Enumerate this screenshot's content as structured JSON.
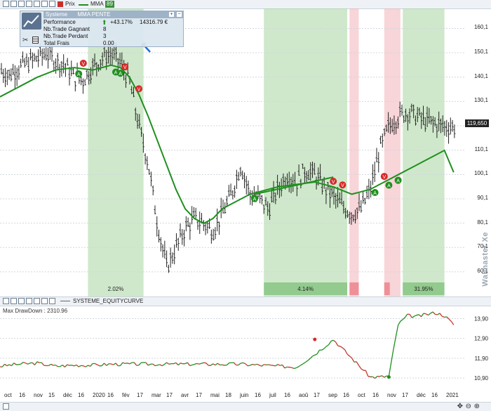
{
  "toolbar": {
    "prix_label": "Prix",
    "mma_label": "MMA",
    "mma_period": "89"
  },
  "legend": {
    "header": "Systeme",
    "strategy": "MMA PENTE",
    "rows": [
      {
        "label": "Performance",
        "value": "+43.17%",
        "value2": "14316.79 €"
      },
      {
        "label": "Nb.Trade Gagnant",
        "value": "8"
      },
      {
        "label": "Nb.Trade Perdant",
        "value": "3"
      },
      {
        "label": "Total Frais",
        "value": "0.00"
      }
    ]
  },
  "brand": "Walmaster Xe",
  "last_price": "119,650",
  "equity_panel": {
    "title": "SYSTEME_EQUITYCURVE",
    "drawdown_label": "Max DrawDown :",
    "drawdown_value": "2310.96"
  },
  "trade_results": [
    "2.02%",
    "4.14%",
    "31.95%"
  ],
  "colors": {
    "ohlc": "#222222",
    "mma": "#1f8f1f",
    "trend_line": "#1f8f1f",
    "long_zone": "#a7d6a0",
    "short_zone": "#f2b3b8",
    "buy_marker": "#1f8f1f",
    "sell_marker": "#d62a2a",
    "equity_up": "#1f8f1f",
    "equity_down": "#c0392b"
  },
  "chart_data": [
    {
      "type": "line",
      "title": "",
      "ylabel": "",
      "ylim": [
        52,
        166
      ],
      "yticks": [
        "160,1",
        "150,1",
        "140,1",
        "130,1",
        "120,1",
        "110,1",
        "100,1",
        "90,1",
        "80,1",
        "70,1",
        "60,1"
      ],
      "ytick_values": [
        160.1,
        150.1,
        140.1,
        130.1,
        120.1,
        110.1,
        100.1,
        90.1,
        80.1,
        70.1,
        60.1
      ],
      "xticks": [
        "oct",
        "16",
        "nov",
        "15",
        "déc",
        "16",
        "2020",
        "16",
        "fév",
        "17",
        "mar",
        "17",
        "avr",
        "17",
        "mai",
        "18",
        "juin",
        "16",
        "juil",
        "16",
        "aoû",
        "17",
        "sep",
        "16",
        "oct",
        "16",
        "nov",
        "17",
        "déc",
        "16",
        "2021"
      ],
      "series": [
        {
          "name": "Prix",
          "x": [
            0,
            2,
            4,
            6,
            8,
            10,
            12,
            14,
            16,
            18,
            20,
            22,
            24,
            26,
            28,
            30,
            32,
            34,
            36,
            38,
            40,
            42,
            44,
            46,
            48,
            50,
            52,
            54,
            56,
            58,
            60,
            62,
            64,
            66,
            68,
            70,
            72,
            74,
            76,
            78,
            80,
            82,
            84,
            86,
            88,
            90,
            92,
            94,
            96,
            98,
            100
          ],
          "values": [
            143,
            141,
            144,
            146,
            148,
            150,
            147,
            145,
            140,
            139,
            144,
            148,
            150,
            146,
            138,
            120,
            105,
            80,
            62,
            70,
            78,
            82,
            80,
            77,
            84,
            92,
            104,
            92,
            90,
            86,
            94,
            100,
            97,
            102,
            100,
            95,
            91,
            87,
            84,
            86,
            94,
            110,
            120,
            124,
            126,
            124,
            122,
            121,
            120,
            119.65,
            119.65
          ]
        },
        {
          "name": "MMA",
          "x": [
            0,
            4,
            8,
            12,
            16,
            20,
            24,
            26,
            28,
            30,
            32,
            34,
            36,
            38,
            40,
            42,
            44,
            46,
            48,
            50,
            52,
            54,
            56,
            58,
            60,
            62,
            64,
            66,
            68,
            70,
            72,
            74,
            76,
            78,
            80,
            82,
            84,
            86,
            88,
            90,
            92,
            94,
            96,
            98
          ],
          "values": [
            132,
            136,
            140,
            143,
            144,
            143,
            145,
            144,
            140,
            133,
            124,
            114,
            104,
            94,
            86,
            82,
            80,
            82,
            86,
            88,
            90,
            92,
            93,
            94,
            95,
            95.5,
            96,
            96.5,
            97,
            96,
            95,
            93.5,
            92,
            93,
            94,
            96,
            98,
            100,
            102,
            104,
            106,
            108,
            110,
            101
          ]
        }
      ],
      "trend_line": {
        "from": [
          55,
          92
        ],
        "to": [
          72,
          99
        ]
      },
      "signals": [
        {
          "x": 17,
          "label": "A"
        },
        {
          "x": 18,
          "label": "V"
        },
        {
          "x": 25,
          "label": "A"
        },
        {
          "x": 26,
          "label": "A"
        },
        {
          "x": 27,
          "label": "V"
        },
        {
          "x": 30,
          "label": "V"
        },
        {
          "x": 55,
          "label": "A"
        },
        {
          "x": 72,
          "label": "V"
        },
        {
          "x": 74,
          "label": "V"
        },
        {
          "x": 81,
          "label": "A"
        },
        {
          "x": 83,
          "label": "V"
        },
        {
          "x": 84,
          "label": "A"
        },
        {
          "x": 86,
          "label": "A"
        }
      ]
    },
    {
      "type": "line",
      "title": "SYSTEME_EQUITYCURVE",
      "ylim": [
        10300,
        14200
      ],
      "yticks": [
        "13,90",
        "12,90",
        "11,90",
        "10,90"
      ],
      "ytick_values": [
        13900,
        12900,
        11900,
        10900
      ],
      "series": [
        {
          "name": "Equity",
          "x": [
            0,
            4,
            8,
            12,
            16,
            20,
            24,
            28,
            32,
            36,
            40,
            44,
            48,
            52,
            56,
            60,
            64,
            68,
            72,
            76,
            80,
            82,
            84,
            86,
            88,
            90,
            92,
            94,
            96,
            98
          ],
          "values": [
            11500,
            11600,
            11650,
            11500,
            11550,
            11550,
            11600,
            11600,
            11600,
            11600,
            11600,
            11600,
            11600,
            11600,
            11550,
            11500,
            11450,
            12100,
            12850,
            11900,
            10950,
            10950,
            11000,
            13600,
            14050,
            14000,
            14100,
            14200,
            14050,
            13600
          ]
        }
      ]
    }
  ]
}
